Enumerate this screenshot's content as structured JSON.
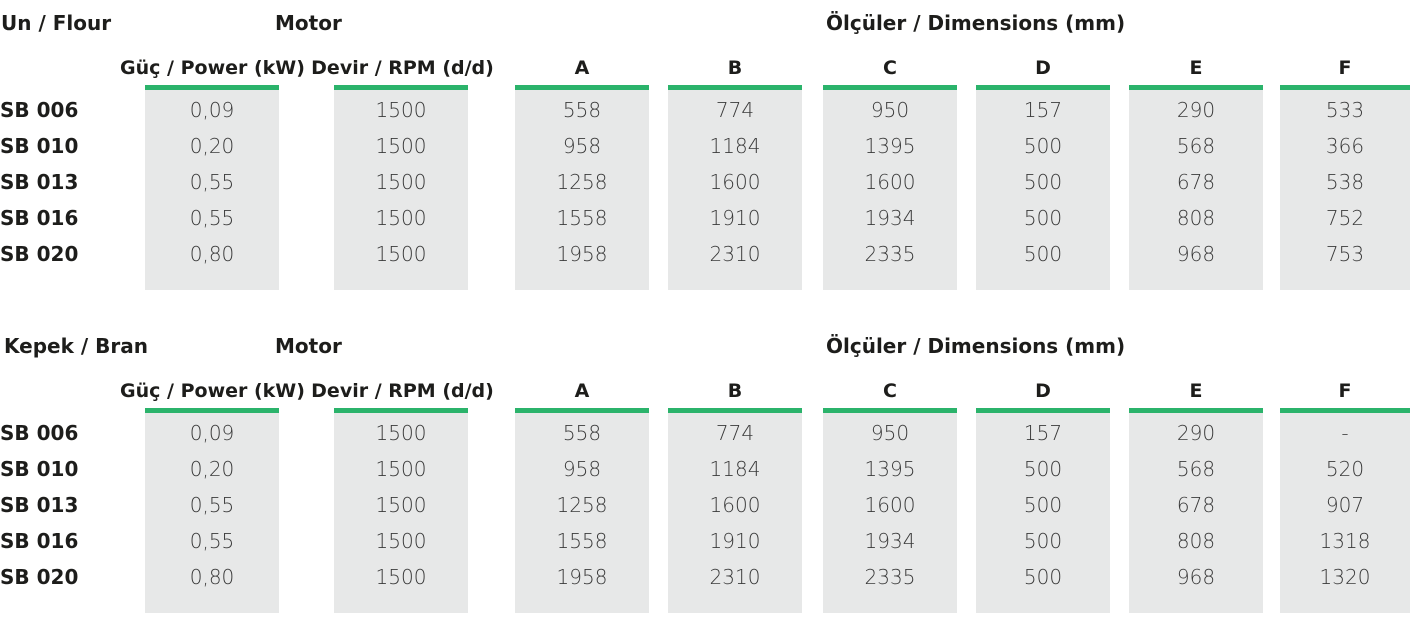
{
  "motor_label": "Motor",
  "dims_label": "Ölçüler / Dimensions (mm)",
  "columns": [
    "Güç / Power (kW)",
    "Devir / RPM (d/d)",
    "A",
    "B",
    "C",
    "D",
    "E",
    "F"
  ],
  "accent_color": "#2bb36b",
  "cell_bg_color": "#e7e8e8",
  "sections": [
    {
      "title": "Un / Flour",
      "rows": [
        {
          "label": "SB 006",
          "values": [
            "0,09",
            "1500",
            "558",
            "774",
            "950",
            "157",
            "290",
            "533"
          ]
        },
        {
          "label": "SB 010",
          "values": [
            "0,20",
            "1500",
            "958",
            "1184",
            "1395",
            "500",
            "568",
            "366"
          ]
        },
        {
          "label": "SB 013",
          "values": [
            "0,55",
            "1500",
            "1258",
            "1600",
            "1600",
            "500",
            "678",
            "538"
          ]
        },
        {
          "label": "SB 016",
          "values": [
            "0,55",
            "1500",
            "1558",
            "1910",
            "1934",
            "500",
            "808",
            "752"
          ]
        },
        {
          "label": "SB 020",
          "values": [
            "0,80",
            "1500",
            "1958",
            "2310",
            "2335",
            "500",
            "968",
            "753"
          ]
        }
      ]
    },
    {
      "title": "Kepek / Bran",
      "rows": [
        {
          "label": "SB 006",
          "values": [
            "0,09",
            "1500",
            "558",
            "774",
            "950",
            "157",
            "290",
            "-"
          ]
        },
        {
          "label": "SB 010",
          "values": [
            "0,20",
            "1500",
            "958",
            "1184",
            "1395",
            "500",
            "568",
            "520"
          ]
        },
        {
          "label": "SB 013",
          "values": [
            "0,55",
            "1500",
            "1258",
            "1600",
            "1600",
            "500",
            "678",
            "907"
          ]
        },
        {
          "label": "SB 016",
          "values": [
            "0,55",
            "1500",
            "1558",
            "1910",
            "1934",
            "500",
            "808",
            "1318"
          ]
        },
        {
          "label": "SB 020",
          "values": [
            "0,80",
            "1500",
            "1958",
            "2310",
            "2335",
            "500",
            "968",
            "1320"
          ]
        }
      ]
    }
  ]
}
